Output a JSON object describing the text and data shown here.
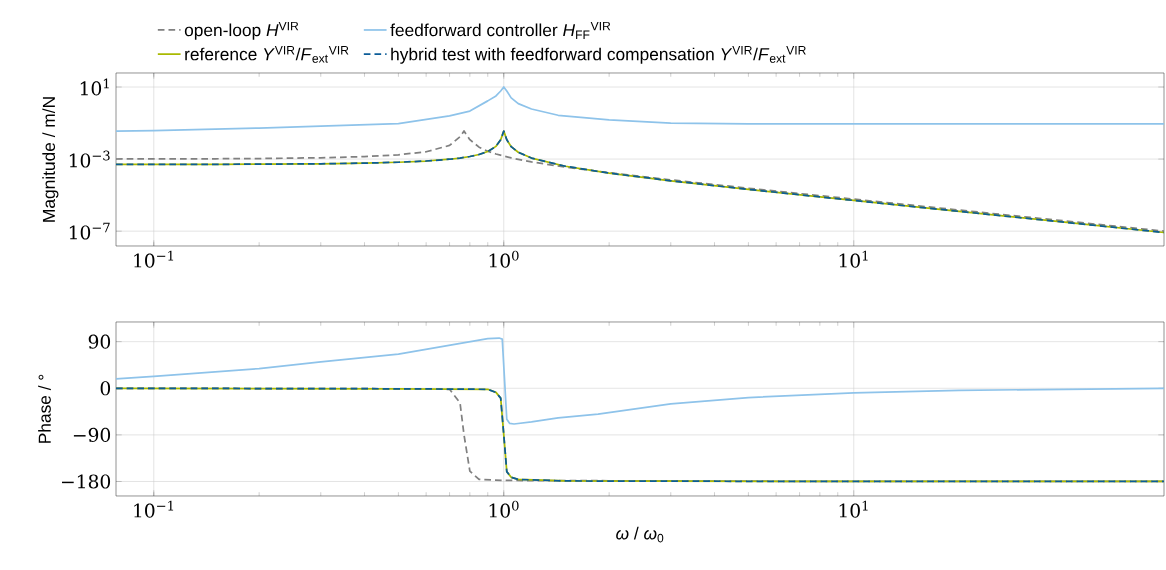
{
  "chart_data": [
    {
      "type": "line",
      "ylabel": "Magnitude / m/N",
      "log": "xy",
      "grid": true,
      "legend": "top",
      "xlim": [
        0.078,
        77
      ],
      "ylim": [
        1.5e-08,
        60
      ],
      "xticks": [
        {
          "value": 0.1,
          "label": "10$^{−1}$"
        },
        {
          "value": 1,
          "label": "10$^{0}$"
        },
        {
          "value": 10,
          "label": "10$^{1}$"
        }
      ],
      "yticks": [
        {
          "value": 1e-07,
          "label": "10$^{−7}$"
        },
        {
          "value": 0.001,
          "label": "10$^{−3}$"
        },
        {
          "value": 10,
          "label": "10$^{1}$"
        }
      ],
      "series": [
        {
          "name": "open-loop *H*$^{VIR}$",
          "color": "#808080",
          "line_style": "dashed",
          "x": [
            0.078,
            0.1,
            0.15,
            0.2,
            0.3,
            0.4,
            0.5,
            0.6,
            0.7,
            0.75,
            0.77,
            0.8,
            0.85,
            0.9,
            0.95,
            1.0,
            1.05,
            1.1,
            1.2,
            1.5,
            2,
            3,
            5,
            10,
            20,
            40,
            77
          ],
          "values": [
            0.00101,
            0.00102,
            0.00104,
            0.00107,
            0.00118,
            0.00137,
            0.00173,
            0.00254,
            0.0057,
            0.0173,
            0.036,
            0.0119,
            0.00457,
            0.00273,
            0.00192,
            0.00146,
            0.00116,
            0.00096,
            0.0007,
            0.000358,
            0.000174,
            7.05e-05,
            2.4e-05,
            5.96e-06,
            1.48e-06,
            3.7e-07,
            1e-07
          ]
        },
        {
          "name": "feedforward controller *H*$_{FF}$$^{VIR}$",
          "color": "#8ec3ea",
          "line_style": "solid",
          "x": [
            0.078,
            0.1,
            0.2,
            0.3,
            0.5,
            0.7,
            0.8,
            0.9,
            0.95,
            0.98,
            1.0,
            1.02,
            1.05,
            1.1,
            1.2,
            1.43,
            2,
            3,
            5,
            10,
            20,
            40,
            77
          ],
          "values": [
            0.036,
            0.038,
            0.053,
            0.068,
            0.094,
            0.25,
            0.46,
            1.7,
            3.2,
            6,
            10,
            6,
            2.5,
            1.2,
            0.6,
            0.27,
            0.15,
            0.1,
            0.091,
            0.09,
            0.09,
            0.09,
            0.09
          ]
        },
        {
          "name": "reference *Y*$^{VIR}$/*F*$_{ext}$$^{VIR}$",
          "color": "#a9b900",
          "line_style": "solid",
          "x": [
            0.078,
            0.1,
            0.15,
            0.2,
            0.3,
            0.4,
            0.5,
            0.6,
            0.7,
            0.75,
            0.8,
            0.85,
            0.9,
            0.95,
            0.98,
            1.0,
            1.02,
            1.05,
            1.1,
            1.2,
            1.5,
            2,
            3,
            5,
            10,
            20,
            40,
            77
          ],
          "values": [
            0.000503,
            0.000505,
            0.000512,
            0.000521,
            0.000549,
            0.000595,
            0.000667,
            0.000781,
            0.00098,
            0.00114,
            0.00139,
            0.0018,
            0.00263,
            0.00508,
            0.0119,
            0.0357,
            0.0117,
            0.00488,
            0.00238,
            0.00114,
            0.0004,
            0.000167,
            6.25e-05,
            2.08e-05,
            5.05e-06,
            1.25e-06,
            3.13e-07,
            8.4e-08
          ]
        },
        {
          "name": "hybrid test with feedforward compensation *Y*$^{VIR}$/*F*$_{ext}$$^{VIR}$",
          "color": "#0b5c98",
          "line_style": "dashed",
          "x": [
            0.078,
            0.1,
            0.15,
            0.2,
            0.3,
            0.4,
            0.5,
            0.6,
            0.7,
            0.75,
            0.8,
            0.85,
            0.9,
            0.95,
            0.98,
            1.0,
            1.02,
            1.05,
            1.1,
            1.2,
            1.5,
            2,
            3,
            5,
            10,
            20,
            40,
            77
          ],
          "values": [
            0.000503,
            0.000505,
            0.000512,
            0.000521,
            0.000549,
            0.000595,
            0.000667,
            0.000781,
            0.00098,
            0.00114,
            0.00139,
            0.0018,
            0.00263,
            0.00508,
            0.0119,
            0.0357,
            0.0117,
            0.00488,
            0.00238,
            0.00114,
            0.0004,
            0.000167,
            6.25e-05,
            2.08e-05,
            5.05e-06,
            1.25e-06,
            3.13e-07,
            8.4e-08
          ]
        }
      ]
    },
    {
      "type": "line",
      "xlabel": "*ω* / *ω*$_{0}$",
      "ylabel": "Phase / °",
      "log": "x",
      "grid": true,
      "xlim": [
        0.078,
        77
      ],
      "ylim": [
        -208,
        128
      ],
      "xticks": [
        {
          "value": 0.1,
          "label": "10$^{−1}$"
        },
        {
          "value": 1,
          "label": "10$^{0}$"
        },
        {
          "value": 10,
          "label": "10$^{1}$"
        }
      ],
      "yticks": [
        {
          "value": -180,
          "label": "−180"
        },
        {
          "value": -90,
          "label": "−90"
        },
        0,
        90
      ],
      "series": [
        {
          "color": "#808080",
          "line_style": "dashed",
          "x": [
            0.078,
            0.5,
            0.7,
            0.75,
            0.77,
            0.8,
            0.85,
            1.0,
            10,
            77
          ],
          "values": [
            0,
            -1,
            -2,
            -28,
            -90,
            -160,
            -176,
            -178,
            -180,
            -180
          ]
        },
        {
          "color": "#8ec3ea",
          "line_style": "solid",
          "x": [
            0.078,
            0.1,
            0.2,
            0.3,
            0.5,
            0.9,
            0.97,
            0.99,
            1.02,
            1.04,
            1.07,
            1.2,
            1.43,
            1.86,
            3,
            5,
            10,
            20,
            77
          ],
          "values": [
            18,
            23,
            38,
            51,
            66,
            96,
            97,
            95,
            -60,
            -68,
            -69,
            -65,
            -57,
            -50,
            -30,
            -18,
            -9,
            -4,
            0
          ]
        },
        {
          "color": "#a9b900",
          "line_style": "solid",
          "x": [
            0.078,
            0.5,
            0.9,
            0.95,
            0.98,
            1.0,
            1.02,
            1.05,
            1.1,
            1.5,
            10,
            77
          ],
          "values": [
            0,
            -1,
            -2,
            -8,
            -19,
            -90,
            -161,
            -172,
            -176,
            -179,
            -180,
            -180
          ]
        },
        {
          "color": "#0b5c98",
          "line_style": "dashed",
          "x": [
            0.078,
            0.5,
            0.9,
            0.95,
            0.98,
            1.0,
            1.02,
            1.05,
            1.1,
            1.5,
            10,
            77
          ],
          "values": [
            0,
            -1,
            -2,
            -8,
            -19,
            -90,
            -161,
            -172,
            -176,
            -179,
            -180,
            -180
          ]
        }
      ]
    }
  ]
}
